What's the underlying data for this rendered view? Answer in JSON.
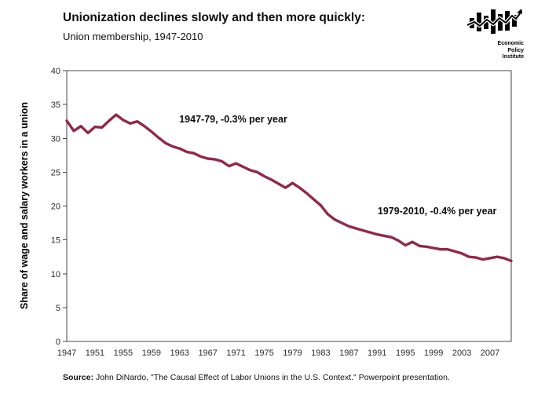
{
  "header": {
    "title": "Unionization declines slowly and then more quickly:",
    "subtitle": "Union membership, 1947-2010"
  },
  "logo": {
    "name": "Economic Policy Institute",
    "line1": "Economic",
    "line2": "Policy",
    "line3": "Institute"
  },
  "chart_data": {
    "type": "line",
    "title": "Union membership, 1947-2010",
    "xlabel": "",
    "ylabel": "Share of wage and salary workers in a union",
    "xlim": [
      1947,
      2010
    ],
    "ylim": [
      0,
      40
    ],
    "yticks": [
      0,
      5,
      10,
      15,
      20,
      25,
      30,
      35,
      40
    ],
    "xticks": [
      1947,
      1951,
      1955,
      1959,
      1963,
      1967,
      1971,
      1975,
      1979,
      1983,
      1987,
      1991,
      1995,
      1999,
      2003,
      2007
    ],
    "grid": false,
    "legend": "none",
    "frame": true,
    "line_color": "#932746",
    "series": [
      {
        "name": "Union membership share",
        "x": [
          1947,
          1948,
          1949,
          1950,
          1951,
          1952,
          1953,
          1954,
          1955,
          1956,
          1957,
          1958,
          1959,
          1960,
          1961,
          1962,
          1963,
          1964,
          1965,
          1966,
          1967,
          1968,
          1969,
          1970,
          1971,
          1972,
          1973,
          1974,
          1975,
          1976,
          1977,
          1978,
          1979,
          1980,
          1981,
          1982,
          1983,
          1984,
          1985,
          1986,
          1987,
          1988,
          1989,
          1990,
          1991,
          1992,
          1993,
          1994,
          1995,
          1996,
          1997,
          1998,
          1999,
          2000,
          2001,
          2002,
          2003,
          2004,
          2005,
          2006,
          2007,
          2008,
          2009,
          2010
        ],
        "values": [
          32.6,
          31.1,
          31.8,
          30.8,
          31.7,
          31.6,
          32.6,
          33.5,
          32.7,
          32.2,
          32.5,
          31.8,
          31.0,
          30.1,
          29.3,
          28.8,
          28.5,
          28.0,
          27.8,
          27.3,
          27.0,
          26.9,
          26.6,
          25.9,
          26.3,
          25.8,
          25.3,
          25.0,
          24.4,
          23.9,
          23.3,
          22.7,
          23.4,
          22.7,
          21.9,
          21.0,
          20.1,
          18.8,
          18.0,
          17.5,
          17.0,
          16.7,
          16.4,
          16.1,
          15.8,
          15.6,
          15.4,
          14.9,
          14.2,
          14.7,
          14.1,
          14.0,
          13.8,
          13.6,
          13.6,
          13.3,
          13.0,
          12.5,
          12.4,
          12.1,
          12.3,
          12.5,
          12.3,
          11.9
        ]
      }
    ],
    "annotations": [
      {
        "text": "1947-79, -0.3% per year",
        "x": 1970.6,
        "y": 32.8
      },
      {
        "text": "1979-2010, -0.4% per year",
        "x": 1999.5,
        "y": 19.2
      }
    ]
  },
  "footer": {
    "source_label": "Source:",
    "source_text": " John DiNardo, \"The Causal Effect of Labor Unions in the U.S. Context.\" Powerpoint presentation."
  }
}
